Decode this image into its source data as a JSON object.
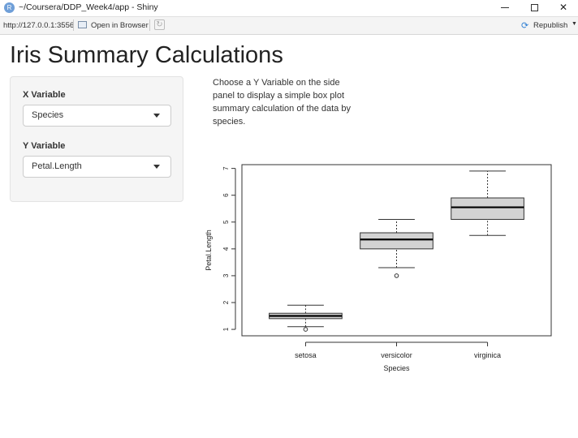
{
  "window": {
    "title": "~/Coursera/DDP_Week4/app - Shiny",
    "app_icon": "R",
    "controls": [
      "minimize-icon",
      "maximize-icon",
      "close-icon"
    ]
  },
  "toolbar": {
    "url": "http://127.0.0.1:3556",
    "open_in_browser": "Open in Browser",
    "republish": "Republish"
  },
  "app": {
    "title": "Iris Summary Calculations",
    "sidebar": {
      "x_label": "X Variable",
      "x_value": "Species",
      "y_label": "Y Variable",
      "y_value": "Petal.Length"
    },
    "description": "Choose a Y Variable on the side panel to display a simple box plot summary calculation of the data by species."
  },
  "chart_data": {
    "type": "boxplot",
    "title": "",
    "xlabel": "Species",
    "ylabel": "Petal.Length",
    "ylim": [
      0.76,
      7.14
    ],
    "yticks": [
      1,
      2,
      3,
      4,
      5,
      6,
      7
    ],
    "categories": [
      "setosa",
      "versicolor",
      "virginica"
    ],
    "boxes": [
      {
        "category": "setosa",
        "whisker_low": 1.1,
        "q1": 1.4,
        "median": 1.5,
        "q3": 1.6,
        "whisker_high": 1.9,
        "outliers": [
          1.0
        ]
      },
      {
        "category": "versicolor",
        "whisker_low": 3.3,
        "q1": 4.0,
        "median": 4.35,
        "q3": 4.6,
        "whisker_high": 5.1,
        "outliers": [
          3.0
        ]
      },
      {
        "category": "virginica",
        "whisker_low": 4.5,
        "q1": 5.1,
        "median": 5.55,
        "q3": 5.9,
        "whisker_high": 6.9,
        "outliers": []
      }
    ],
    "box_fill": "#d3d3d3",
    "grid": false
  }
}
